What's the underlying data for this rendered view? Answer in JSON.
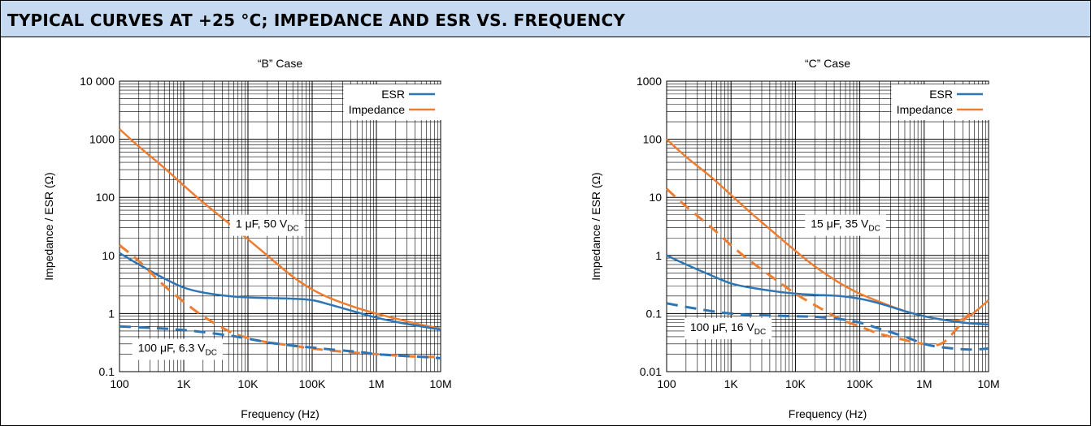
{
  "header": {
    "title": "TYPICAL CURVES AT +25 °C; IMPEDANCE AND ESR VS. FREQUENCY"
  },
  "colors": {
    "esr": "#2e75b6",
    "impedance": "#ed7d31",
    "header_bg": "#c5d9f1"
  },
  "chart_data": [
    {
      "type": "line",
      "title": "“B” Case",
      "xlabel": "Frequency (Hz)",
      "ylabel": "Impedance / ESR (Ω)",
      "xscale": "log",
      "yscale": "log",
      "xlim": [
        100,
        10000000
      ],
      "ylim": [
        0.1,
        10000
      ],
      "x_tick_values": [
        100,
        1000,
        10000,
        100000,
        1000000,
        10000000
      ],
      "x_tick_labels": [
        "100",
        "1K",
        "10K",
        "100K",
        "1M",
        "10M"
      ],
      "y_tick_values": [
        0.1,
        1,
        10,
        100,
        1000,
        10000
      ],
      "y_tick_labels": [
        "0.1",
        "1",
        "10",
        "100",
        "1000",
        "10 000"
      ],
      "grid": true,
      "legend": {
        "position": "top-right",
        "entries": [
          {
            "label": "ESR",
            "series": "ESR"
          },
          {
            "label": "Impedance",
            "series": "Impedance"
          }
        ]
      },
      "annotations": [
        {
          "text": "1 μF, 50 V",
          "sub": "DC",
          "x": 20000,
          "y": 30
        },
        {
          "text": "100 μF, 6.3 V",
          "sub": "DC",
          "x": 800,
          "y": 0.22
        }
      ],
      "series": [
        {
          "name": "Impedance",
          "device": "1 μF, 50 V",
          "style": "solid",
          "x": [
            100,
            200,
            500,
            1000,
            2000,
            5000,
            10000,
            20000,
            50000,
            100000,
            200000,
            500000,
            1000000,
            2000000,
            5000000,
            10000000
          ],
          "y": [
            1500,
            750,
            320,
            160,
            82,
            36,
            19,
            10,
            4.3,
            2.6,
            1.8,
            1.25,
            1.0,
            0.82,
            0.64,
            0.55
          ]
        },
        {
          "name": "ESR",
          "device": "1 μF, 50 V",
          "style": "solid",
          "x": [
            100,
            200,
            500,
            1000,
            2000,
            5000,
            10000,
            20000,
            50000,
            100000,
            200000,
            500000,
            1000000,
            2000000,
            5000000,
            10000000
          ],
          "y": [
            11,
            7,
            4,
            2.8,
            2.3,
            2.0,
            1.9,
            1.85,
            1.8,
            1.7,
            1.4,
            1.05,
            0.85,
            0.72,
            0.6,
            0.53
          ]
        },
        {
          "name": "Impedance",
          "device": "100 μF, 6.3 V",
          "style": "dashed",
          "x": [
            100,
            200,
            500,
            1000,
            2000,
            5000,
            10000,
            20000,
            50000,
            100000,
            200000,
            500000,
            1000000,
            2000000,
            5000000,
            10000000
          ],
          "y": [
            15,
            8,
            3,
            1.6,
            0.9,
            0.5,
            0.38,
            0.32,
            0.28,
            0.25,
            0.23,
            0.21,
            0.2,
            0.19,
            0.18,
            0.18
          ]
        },
        {
          "name": "ESR",
          "device": "100 μF, 6.3 V",
          "style": "dashed",
          "x": [
            100,
            200,
            500,
            1000,
            2000,
            5000,
            10000,
            20000,
            50000,
            100000,
            200000,
            500000,
            1000000,
            2000000,
            5000000,
            10000000
          ],
          "y": [
            0.6,
            0.58,
            0.55,
            0.52,
            0.48,
            0.42,
            0.37,
            0.32,
            0.28,
            0.26,
            0.24,
            0.22,
            0.2,
            0.19,
            0.18,
            0.17
          ]
        }
      ]
    },
    {
      "type": "line",
      "title": "“C” Case",
      "xlabel": "Frequency (Hz)",
      "ylabel": "Impedance / ESR (Ω)",
      "xscale": "log",
      "yscale": "log",
      "xlim": [
        100,
        10000000
      ],
      "ylim": [
        0.01,
        1000
      ],
      "x_tick_values": [
        100,
        1000,
        10000,
        100000,
        1000000,
        10000000
      ],
      "x_tick_labels": [
        "100",
        "1K",
        "10K",
        "100K",
        "1M",
        "10M"
      ],
      "y_tick_values": [
        0.01,
        0.1,
        1,
        10,
        100,
        1000
      ],
      "y_tick_labels": [
        "0.01",
        "0.1",
        "1",
        "10",
        "100",
        "1000"
      ],
      "grid": true,
      "legend": {
        "position": "top-right",
        "entries": [
          {
            "label": "ESR",
            "series": "ESR"
          },
          {
            "label": "Impedance",
            "series": "Impedance"
          }
        ]
      },
      "annotations": [
        {
          "text": "15 μF, 35 V",
          "sub": "DC",
          "x": 60000,
          "y": 3
        },
        {
          "text": "100 μF, 16 V",
          "sub": "DC",
          "x": 900,
          "y": 0.05
        }
      ],
      "series": [
        {
          "name": "Impedance",
          "device": "15 μF, 35 V",
          "style": "solid",
          "x": [
            100,
            200,
            500,
            1000,
            2000,
            5000,
            10000,
            20000,
            50000,
            100000,
            200000,
            500000,
            1000000,
            2000000,
            3000000,
            5000000,
            10000000
          ],
          "y": [
            100,
            50,
            22,
            11,
            5.5,
            2.3,
            1.2,
            0.65,
            0.33,
            0.22,
            0.16,
            0.11,
            0.09,
            0.078,
            0.075,
            0.09,
            0.17
          ]
        },
        {
          "name": "ESR",
          "device": "15 μF, 35 V",
          "style": "solid",
          "x": [
            100,
            200,
            500,
            1000,
            2000,
            5000,
            10000,
            20000,
            50000,
            100000,
            200000,
            500000,
            1000000,
            2000000,
            5000000,
            10000000
          ],
          "y": [
            1.0,
            0.7,
            0.45,
            0.33,
            0.28,
            0.24,
            0.22,
            0.21,
            0.2,
            0.18,
            0.15,
            0.11,
            0.09,
            0.078,
            0.068,
            0.065
          ]
        },
        {
          "name": "Impedance",
          "device": "100 μF, 16 V",
          "style": "dashed",
          "x": [
            100,
            200,
            500,
            1000,
            2000,
            5000,
            10000,
            20000,
            50000,
            100000,
            200000,
            500000,
            1000000,
            2000000,
            5000000
          ],
          "y": [
            14,
            7,
            3,
            1.5,
            0.8,
            0.38,
            0.22,
            0.14,
            0.08,
            0.06,
            0.045,
            0.035,
            0.03,
            0.032,
            0.1
          ]
        },
        {
          "name": "ESR",
          "device": "100 μF, 16 V",
          "style": "dashed",
          "x": [
            100,
            200,
            500,
            1000,
            2000,
            5000,
            10000,
            20000,
            50000,
            100000,
            200000,
            500000,
            1000000,
            2000000,
            5000000,
            10000000
          ],
          "y": [
            0.15,
            0.13,
            0.11,
            0.1,
            0.095,
            0.092,
            0.09,
            0.088,
            0.08,
            0.07,
            0.055,
            0.04,
            0.03,
            0.026,
            0.024,
            0.025
          ]
        }
      ]
    }
  ]
}
